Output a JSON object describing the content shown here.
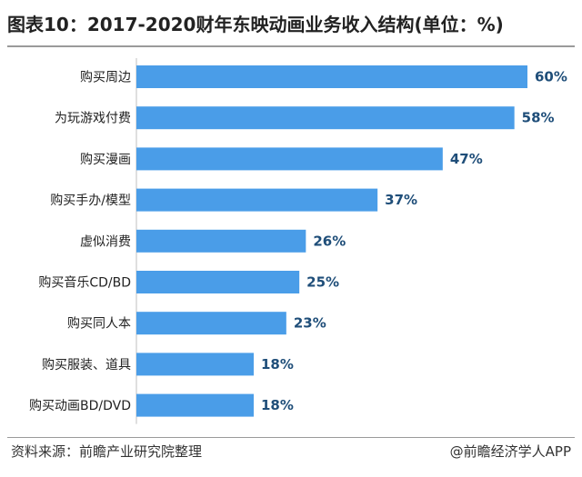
{
  "title": "图表10：2017-2020财年东映动画业务收入结构(单位：%)",
  "footer": {
    "source": "资料来源：前瞻产业研究院整理",
    "credit": "@前瞻经济学人APP"
  },
  "colors": {
    "bar": "#4a9de8",
    "value_label": "#1f4e79"
  },
  "chart_data": {
    "type": "bar",
    "orientation": "horizontal",
    "title": "图表10：2017-2020财年东映动画业务收入结构(单位：%)",
    "categories": [
      "购买周边",
      "为玩游戏付费",
      "购买漫画",
      "购买手办/模型",
      "虚似消费",
      "购买音乐CD/BD",
      "购买同人本",
      "购买服装、道具",
      "购买动画BD/DVD"
    ],
    "values": [
      60,
      58,
      47,
      37,
      26,
      25,
      23,
      18,
      18
    ],
    "data_labels": [
      "60%",
      "58%",
      "47%",
      "37%",
      "26%",
      "25%",
      "23%",
      "18%",
      "18%"
    ],
    "unit": "%",
    "xlim": [
      0,
      60
    ],
    "grid": false,
    "legend": "none"
  }
}
